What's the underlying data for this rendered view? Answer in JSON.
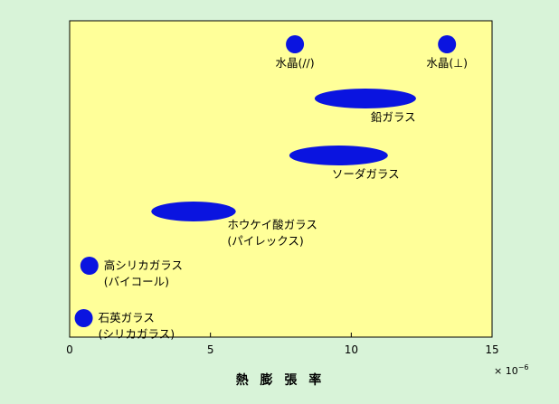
{
  "chart_data": {
    "type": "scatter",
    "xlabel": "熱 膨 張 率",
    "x_unit": "× 10",
    "x_unit_exponent": "−6",
    "xlim": [
      0,
      15
    ],
    "x_ticks": [
      "0",
      "5",
      "10",
      "15"
    ],
    "colors": {
      "background": "#d8f3d8",
      "plot_area": "#ffff99",
      "marker": "#0a14e0"
    },
    "grid": false,
    "points": [
      {
        "label_lines": [
          "水晶(//)"
        ],
        "x_min": 8.0,
        "x_max": 8.0,
        "shape": "circle"
      },
      {
        "label_lines": [
          "水晶(⊥)"
        ],
        "x_min": 13.4,
        "x_max": 13.4,
        "shape": "circle"
      },
      {
        "label_lines": [
          "鉛ガラス"
        ],
        "x_min": 8.7,
        "x_max": 12.3,
        "shape": "ellipse"
      },
      {
        "label_lines": [
          "ソーダガラス"
        ],
        "x_min": 7.8,
        "x_max": 11.3,
        "shape": "ellipse"
      },
      {
        "label_lines": [
          "ホウケイ酸ガラス",
          "(パイレックス)"
        ],
        "x_min": 2.9,
        "x_max": 5.9,
        "shape": "ellipse"
      },
      {
        "label_lines": [
          "高シリカガラス",
          "(バイコール)"
        ],
        "x_min": 0.7,
        "x_max": 0.7,
        "shape": "circle"
      },
      {
        "label_lines": [
          "石英ガラス",
          "(シリカガラス)"
        ],
        "x_min": 0.5,
        "x_max": 0.5,
        "shape": "circle"
      }
    ]
  }
}
